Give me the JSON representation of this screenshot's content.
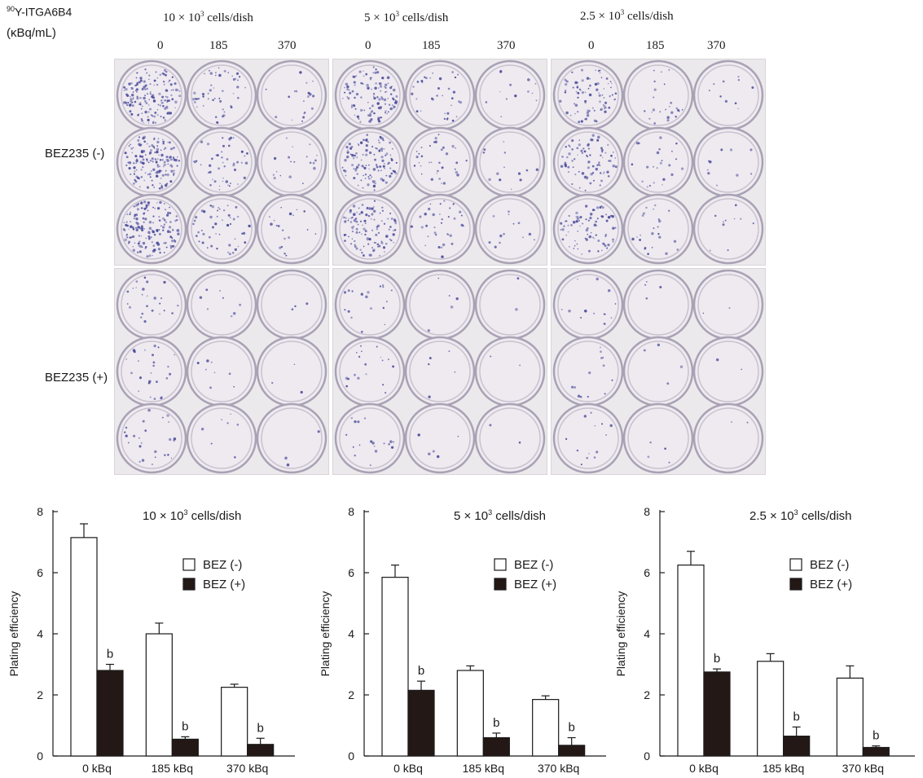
{
  "header": {
    "isotope_label_sup": "90",
    "isotope_label": "Y-ITGA6B4",
    "unit_label": "(κBq/mL)",
    "bez_minus_label": "BEZ235 (-)",
    "bez_plus_label": "BEZ235 (+)",
    "panels": [
      {
        "density_prefix": "10 × 10",
        "density_sup": "3",
        "density_suffix": " cells/dish",
        "doses": [
          "0",
          "185",
          "370"
        ]
      },
      {
        "density_prefix": "5 × 10",
        "density_sup": "3",
        "density_suffix": " cells/dish",
        "doses": [
          "0",
          "185",
          "370"
        ]
      },
      {
        "density_prefix": "2.5 × 10",
        "density_sup": "3",
        "density_suffix": " cells/dish",
        "doses": [
          "0",
          "185",
          "370"
        ]
      }
    ]
  },
  "colors": {
    "bar_minus": "#ffffff",
    "bar_plus": "#231815",
    "dish_rim": "#a9a1b4",
    "colony": "#4a4a9a"
  },
  "chart_data": [
    {
      "type": "bar",
      "title_prefix": "10 × 10",
      "title_sup": "3",
      "title_suffix": " cells/dish",
      "ylabel": "Plating efficiency",
      "ylim": [
        0,
        8
      ],
      "yticks": [
        "0",
        "2",
        "4",
        "6",
        "8"
      ],
      "categories": [
        "0 kBq",
        "185 kBq",
        "370 kBq"
      ],
      "series": [
        {
          "name": "BEZ (-)",
          "values": [
            7.15,
            4.0,
            2.25
          ],
          "errors": [
            0.45,
            0.35,
            0.1
          ]
        },
        {
          "name": "BEZ (+)",
          "values": [
            2.8,
            0.55,
            0.38
          ],
          "errors": [
            0.2,
            0.08,
            0.2
          ]
        }
      ],
      "annotations": [
        "b",
        "b",
        "b"
      ],
      "legend": "top-right"
    },
    {
      "type": "bar",
      "title_prefix": "5 × 10",
      "title_sup": "3",
      "title_suffix": " cells/dish",
      "ylabel": "Plating efficiency",
      "ylim": [
        0,
        8
      ],
      "yticks": [
        "0",
        "2",
        "4",
        "6",
        "8"
      ],
      "categories": [
        "0 kBq",
        "185 kBq",
        "370 kBq"
      ],
      "series": [
        {
          "name": "BEZ (-)",
          "values": [
            5.85,
            2.8,
            1.85
          ],
          "errors": [
            0.4,
            0.15,
            0.12
          ]
        },
        {
          "name": "BEZ (+)",
          "values": [
            2.15,
            0.6,
            0.35
          ],
          "errors": [
            0.3,
            0.15,
            0.25
          ]
        }
      ],
      "annotations": [
        "b",
        "b",
        "b"
      ],
      "legend": "top-right"
    },
    {
      "type": "bar",
      "title_prefix": "2.5 × 10",
      "title_sup": "3",
      "title_suffix": " cells/dish",
      "ylabel": "Plating efficiency",
      "ylim": [
        0,
        8
      ],
      "yticks": [
        "0",
        "2",
        "4",
        "6",
        "8"
      ],
      "categories": [
        "0 kBq",
        "185 kBq",
        "370 kBq"
      ],
      "series": [
        {
          "name": "BEZ (-)",
          "values": [
            6.25,
            3.1,
            2.55
          ],
          "errors": [
            0.45,
            0.25,
            0.4
          ]
        },
        {
          "name": "BEZ (+)",
          "values": [
            2.75,
            0.65,
            0.28
          ],
          "errors": [
            0.1,
            0.3,
            0.05
          ]
        }
      ],
      "annotations": [
        "b",
        "b",
        "b"
      ],
      "legend": "top-right"
    }
  ]
}
